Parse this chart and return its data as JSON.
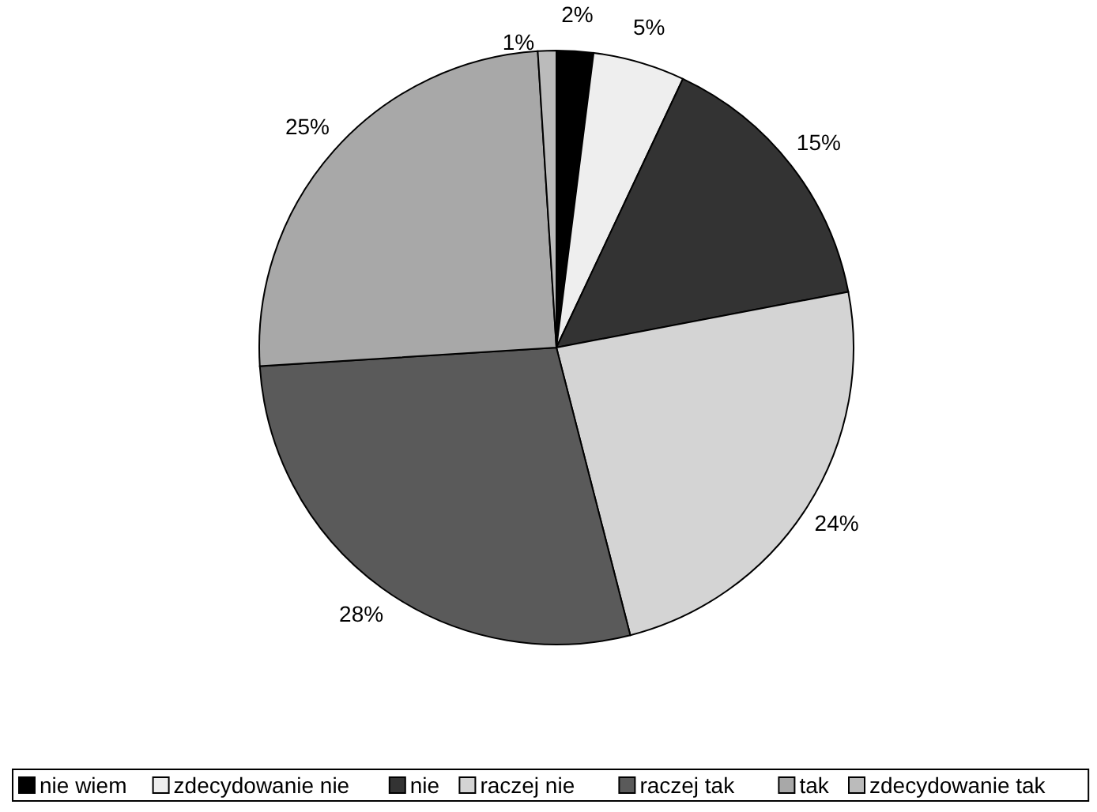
{
  "chart_data": {
    "type": "pie",
    "categories": [
      "nie wiem",
      "zdecydowanie nie",
      "nie",
      "raczej nie",
      "raczej tak",
      "tak",
      "zdecydowanie tak"
    ],
    "values": [
      2,
      5,
      15,
      24,
      28,
      25,
      1
    ],
    "value_labels": [
      "2%",
      "5%",
      "15%",
      "24%",
      "28%",
      "25%",
      "1%"
    ],
    "colors": [
      "#000000",
      "#eeeeee",
      "#333333",
      "#d4d4d4",
      "#5a5a5a",
      "#a8a8a8",
      "#bbbbbb"
    ],
    "legend": "bottom"
  }
}
